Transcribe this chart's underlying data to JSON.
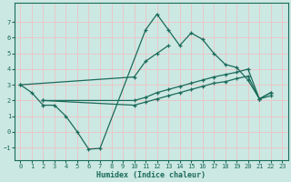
{
  "background_color": "#cce8e3",
  "grid_color": "#e8c8c8",
  "line_color": "#1a6b5a",
  "xlabel": "Humidex (Indice chaleur)",
  "xlim": [
    -0.5,
    23.5
  ],
  "ylim": [
    -1.8,
    8.2
  ],
  "xticks": [
    0,
    1,
    2,
    3,
    4,
    5,
    6,
    7,
    8,
    9,
    10,
    11,
    12,
    13,
    14,
    15,
    16,
    17,
    18,
    19,
    20,
    21,
    22,
    23
  ],
  "yticks": [
    -1,
    0,
    1,
    2,
    3,
    4,
    5,
    6,
    7
  ],
  "curve1_x": [
    0,
    1,
    2,
    3,
    4,
    5,
    6,
    7,
    11,
    12,
    13,
    14,
    15,
    16,
    17,
    18,
    19,
    20,
    21,
    22
  ],
  "curve1_y": [
    3.0,
    2.5,
    1.7,
    1.7,
    1.0,
    0.0,
    -1.1,
    -1.05,
    6.5,
    7.5,
    6.5,
    5.5,
    6.3,
    5.9,
    5.0,
    4.3,
    4.1,
    3.3,
    2.1,
    2.5
  ],
  "curve2_x": [
    0,
    10,
    11,
    12,
    13
  ],
  "curve2_y": [
    3.0,
    3.5,
    4.5,
    5.0,
    5.5
  ],
  "curve3_x": [
    2,
    10,
    11,
    12,
    13,
    14,
    15,
    16,
    17,
    18,
    19,
    20,
    21,
    22
  ],
  "curve3_y": [
    2.0,
    2.0,
    2.2,
    2.5,
    2.7,
    2.9,
    3.1,
    3.3,
    3.5,
    3.65,
    3.8,
    4.0,
    2.1,
    2.5
  ],
  "curve4_x": [
    2,
    10,
    11,
    12,
    13,
    14,
    15,
    16,
    17,
    18,
    19,
    20,
    21,
    22
  ],
  "curve4_y": [
    2.0,
    1.7,
    1.9,
    2.1,
    2.3,
    2.5,
    2.7,
    2.9,
    3.1,
    3.2,
    3.4,
    3.55,
    2.1,
    2.3
  ]
}
